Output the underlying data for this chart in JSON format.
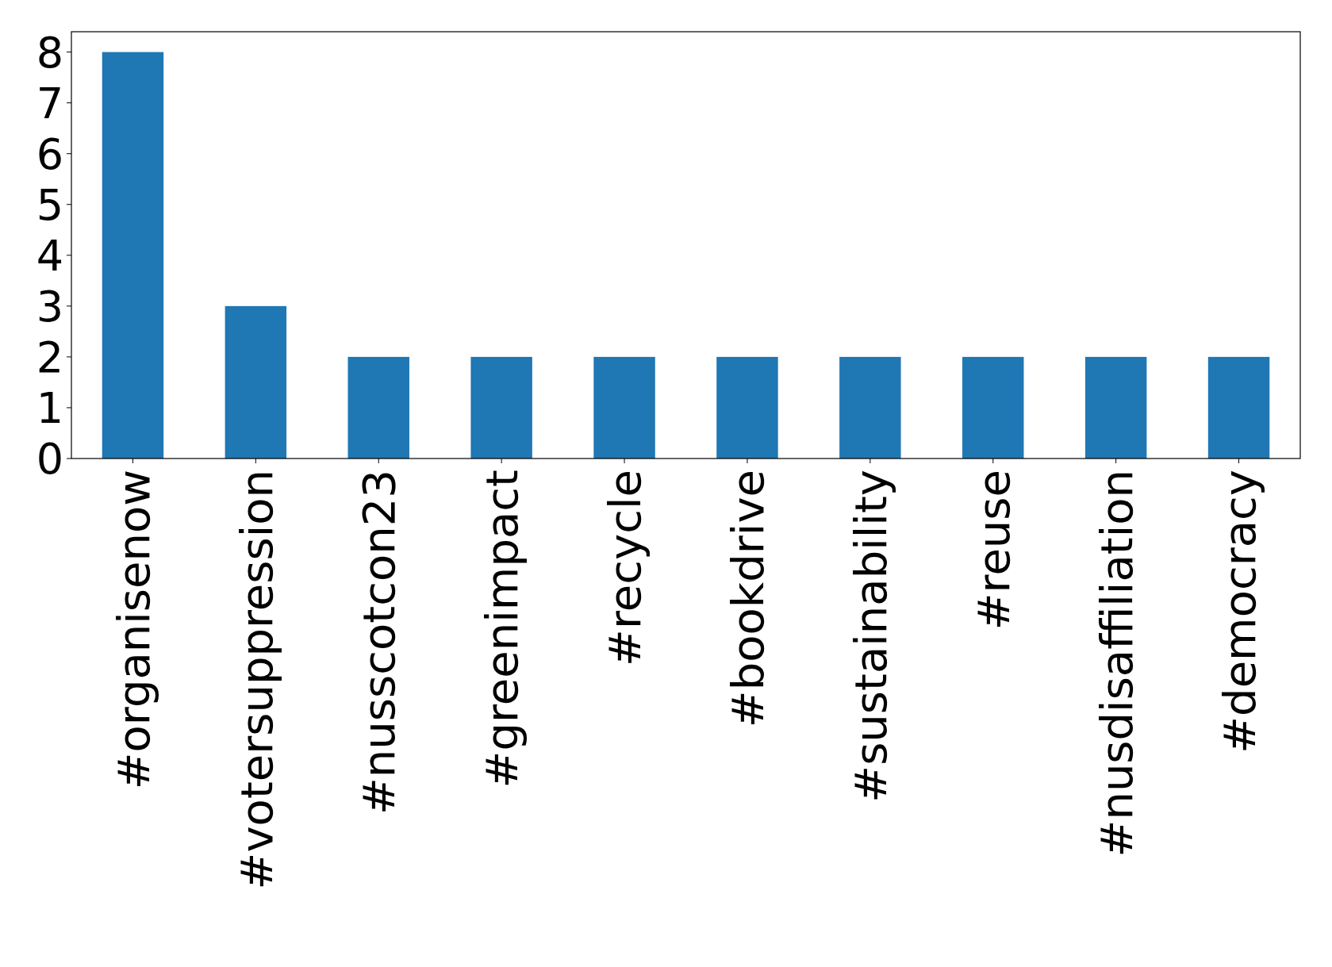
{
  "chart_data": {
    "type": "bar",
    "categories": [
      "#organisenow",
      "#votersuppression",
      "#nusscotcon23",
      "#greenimpact",
      "#recycle",
      "#bookdrive",
      "#sustainability",
      "#reuse",
      "#nusdisaffiliation",
      "#democracy"
    ],
    "values": [
      8,
      3,
      2,
      2,
      2,
      2,
      2,
      2,
      2,
      2
    ],
    "color": "#1f77b4",
    "ylim": [
      0,
      8.4
    ],
    "yticks": [
      0,
      1,
      2,
      3,
      4,
      5,
      6,
      7,
      8
    ]
  }
}
